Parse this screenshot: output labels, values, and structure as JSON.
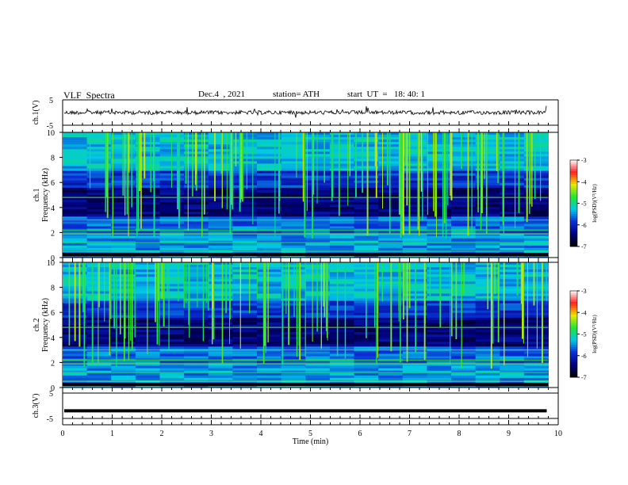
{
  "header": {
    "title": "VLF  Spectra",
    "date": "Dec.4  , 2021",
    "station": "station= ATH",
    "start": "start  UT  =   18: 40: 1"
  },
  "chart_data": [
    {
      "type": "line",
      "ylabel": "ch.1(V)",
      "yticks": [
        "5",
        "-5"
      ],
      "ylim": [
        -5,
        5
      ],
      "xlim": [
        0,
        10
      ],
      "baseline": 0.0
    },
    {
      "type": "heatmap",
      "ylabel": "ch.1\nFrequency  (kHz)",
      "yticks": [
        "10",
        "8",
        "6",
        "4",
        "2",
        "0"
      ],
      "ylim": [
        0,
        10
      ],
      "xlim": [
        0,
        9.8
      ],
      "colorbar": {
        "label": "log(PSD)(V²/Hz)",
        "ticks": [
          "-3",
          "-4",
          "-5",
          "-6",
          "-7"
        ],
        "range": [
          -7,
          -3
        ]
      }
    },
    {
      "type": "heatmap",
      "ylabel": "ch.2\nFrequency  (kHz)",
      "yticks": [
        "10",
        "8",
        "6",
        "4",
        "2",
        "0"
      ],
      "ylim": [
        0,
        10
      ],
      "xlim": [
        0,
        9.8
      ],
      "colorbar": {
        "label": "log(PSD)(V²/Hz)",
        "ticks": [
          "-3",
          "-4",
          "-5",
          "-6",
          "-7"
        ],
        "range": [
          -7,
          -3
        ]
      }
    },
    {
      "type": "line",
      "ylabel": "ch.3(V)",
      "yticks": [
        "5",
        "-5"
      ],
      "ylim": [
        -5,
        5
      ],
      "xlim": [
        0,
        10
      ],
      "baseline": -2.0
    }
  ],
  "xaxis": {
    "label": "Time  (min)",
    "ticks": [
      "0",
      "1",
      "2",
      "3",
      "4",
      "5",
      "6",
      "7",
      "8",
      "9",
      "10"
    ],
    "range": [
      0,
      10
    ]
  },
  "colors": {
    "colormap": [
      "#000000",
      "#00007a",
      "#0a2fd6",
      "#00c9e6",
      "#20e632",
      "#e8e800",
      "#ff2020",
      "#ffffff"
    ]
  }
}
